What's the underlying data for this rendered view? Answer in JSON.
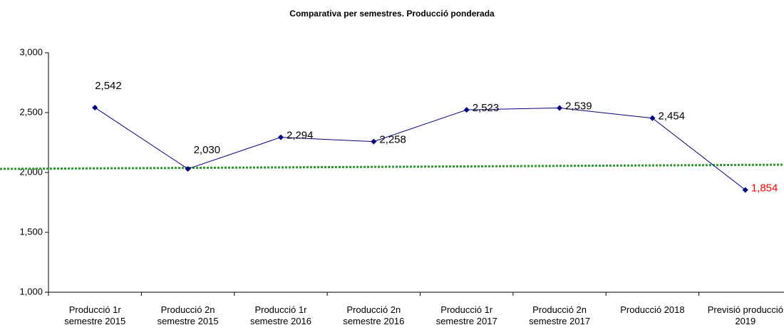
{
  "chart_data": {
    "type": "line",
    "title": "Comparativa per semestres. Producció ponderada",
    "categories": [
      "Producció 1r semestre 2015",
      "Producció 2n semestre 2015",
      "Producció 1r semestre 2016",
      "Producció 2n semestre 2016",
      "Producció 1r semestre 2017",
      "Producció 2n semestre 2017",
      "Producció 2018",
      "Previsió producció 2019"
    ],
    "values": [
      2542,
      2030,
      2294,
      2258,
      2523,
      2539,
      2454,
      1854
    ],
    "value_labels": [
      "2,542",
      "2,030",
      "2,294",
      "2,258",
      "2,523",
      "2,539",
      "2,454",
      "1,854"
    ],
    "value_label_colors": [
      "#000000",
      "#000000",
      "#000000",
      "#000000",
      "#000000",
      "#000000",
      "#000000",
      "#ff0000"
    ],
    "color": "#000080",
    "ylim": [
      1000,
      3000
    ],
    "yticks": [
      {
        "value": 1000,
        "label": "1,000"
      },
      {
        "value": 1500,
        "label": "1,500"
      },
      {
        "value": 2000,
        "label": "2,000"
      },
      {
        "value": 2500,
        "label": "2,500"
      },
      {
        "value": 3000,
        "label": "3,000"
      }
    ],
    "reference_line": {
      "color": "#2e9a2e",
      "values": [
        2030,
        2065
      ]
    }
  }
}
